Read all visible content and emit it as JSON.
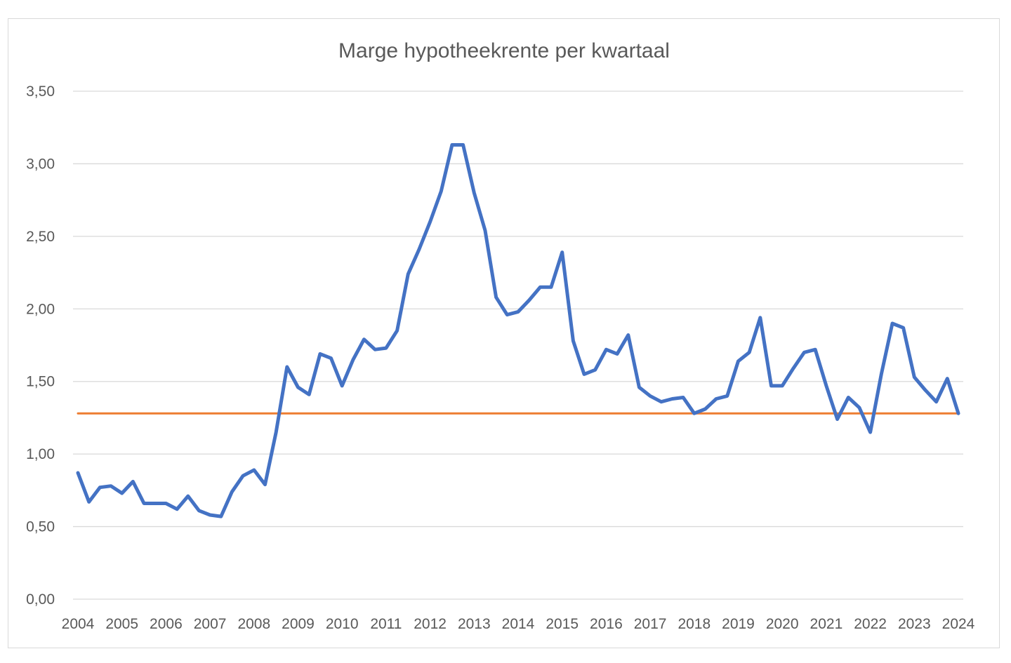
{
  "chart_data": {
    "type": "line",
    "title": "Marge hypotheekrente per kwartaal",
    "xlabel": "",
    "ylabel": "",
    "ylim": [
      0,
      3.5
    ],
    "yticks": [
      0,
      0.5,
      1.0,
      1.5,
      2.0,
      2.5,
      3.0,
      3.5
    ],
    "ytick_labels": [
      "0,00",
      "0,50",
      "1,00",
      "1,50",
      "2,00",
      "2,50",
      "3,00",
      "3,50"
    ],
    "xlim": [
      2004,
      2024
    ],
    "xticks": [
      "2004",
      "2005",
      "2006",
      "2007",
      "2008",
      "2009",
      "2010",
      "2011",
      "2012",
      "2013",
      "2014",
      "2015",
      "2016",
      "2017",
      "2018",
      "2019",
      "2020",
      "2021",
      "2022",
      "2023",
      "2024"
    ],
    "grid": "horizontal",
    "legend": "none",
    "series": [
      {
        "color": "#4472c4",
        "x": [
          2004.0,
          2004.25,
          2004.5,
          2004.75,
          2005.0,
          2005.25,
          2005.5,
          2005.75,
          2006.0,
          2006.25,
          2006.5,
          2006.75,
          2007.0,
          2007.25,
          2007.5,
          2007.75,
          2008.0,
          2008.25,
          2008.5,
          2008.75,
          2009.0,
          2009.25,
          2009.5,
          2009.75,
          2010.0,
          2010.25,
          2010.5,
          2010.75,
          2011.0,
          2011.25,
          2011.5,
          2011.75,
          2012.0,
          2012.25,
          2012.5,
          2012.75,
          2013.0,
          2013.25,
          2013.5,
          2013.75,
          2014.0,
          2014.25,
          2014.5,
          2014.75,
          2015.0,
          2015.25,
          2015.5,
          2015.75,
          2016.0,
          2016.25,
          2016.5,
          2016.75,
          2017.0,
          2017.25,
          2017.5,
          2017.75,
          2018.0,
          2018.25,
          2018.5,
          2018.75,
          2019.0,
          2019.25,
          2019.5,
          2019.75,
          2020.0,
          2020.25,
          2020.5,
          2020.75,
          2021.0,
          2021.25,
          2021.5,
          2021.75,
          2022.0,
          2022.25,
          2022.5,
          2022.75,
          2023.0,
          2023.25,
          2023.5,
          2023.75,
          2024.0
        ],
        "y": [
          0.87,
          0.67,
          0.77,
          0.78,
          0.73,
          0.81,
          0.66,
          0.66,
          0.66,
          0.62,
          0.71,
          0.61,
          0.58,
          0.57,
          0.74,
          0.85,
          0.89,
          0.79,
          1.15,
          1.6,
          1.46,
          1.41,
          1.69,
          1.66,
          1.47,
          1.65,
          1.79,
          1.72,
          1.73,
          1.85,
          2.24,
          2.41,
          2.6,
          2.81,
          3.13,
          3.13,
          2.8,
          2.54,
          2.08,
          1.96,
          1.98,
          2.06,
          2.15,
          2.15,
          2.39,
          1.78,
          1.55,
          1.58,
          1.72,
          1.69,
          1.82,
          1.46,
          1.4,
          1.36,
          1.38,
          1.39,
          1.28,
          1.31,
          1.38,
          1.4,
          1.64,
          1.7,
          1.94,
          1.47,
          1.47,
          1.59,
          1.7,
          1.72,
          1.47,
          1.24,
          1.39,
          1.32,
          1.15,
          1.55,
          1.9,
          1.87,
          1.53,
          1.44,
          1.36,
          1.52,
          1.28
        ]
      },
      {
        "color": "#ed7d31",
        "x": [
          2004.0,
          2024.0
        ],
        "y": [
          1.28,
          1.28
        ]
      }
    ]
  }
}
